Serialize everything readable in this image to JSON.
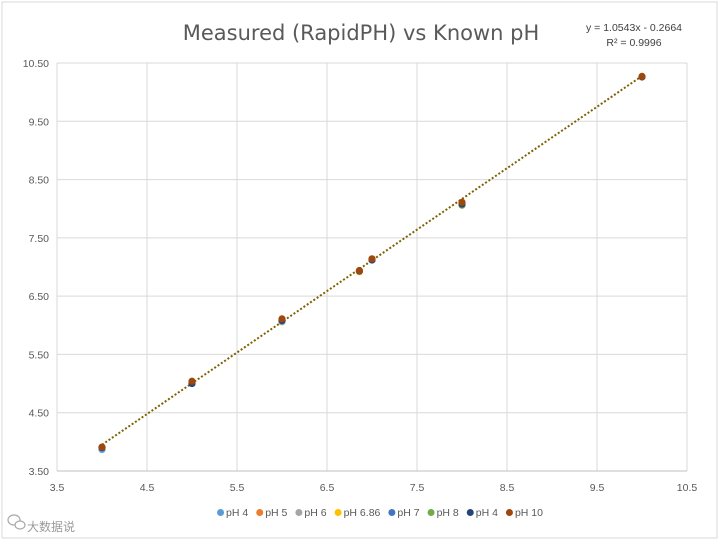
{
  "chart_data": {
    "type": "scatter",
    "title": "Measured (RapidPH) vs Known pH",
    "xlabel": "",
    "ylabel": "",
    "xlim": [
      3.5,
      10.5
    ],
    "ylim": [
      3.5,
      10.5
    ],
    "x_ticks": [
      "3.5",
      "4.5",
      "5.5",
      "6.5",
      "7.5",
      "8.5",
      "9.5",
      "10.5"
    ],
    "y_ticks": [
      "3.50",
      "4.50",
      "5.50",
      "6.50",
      "7.50",
      "8.50",
      "9.50",
      "10.50"
    ],
    "grid": true,
    "legend_position": "bottom",
    "trendline": {
      "type": "linear",
      "slope": 1.0543,
      "intercept": -0.2664,
      "x_range": [
        4,
        10
      ],
      "color": "#7f6000",
      "equation": "y = 1.0543x - 0.2664",
      "r_squared": "R² = 0.9996"
    },
    "series": [
      {
        "name": "pH 4",
        "color": "#5b9bd5",
        "points": [
          [
            4,
            3.87
          ]
        ]
      },
      {
        "name": "pH 5",
        "color": "#ed7d31",
        "points": [
          [
            5,
            5.03
          ]
        ]
      },
      {
        "name": "pH 6",
        "color": "#a5a5a5",
        "points": [
          [
            6,
            6.06
          ]
        ]
      },
      {
        "name": "pH 6.86",
        "color": "#ffc000",
        "points": [
          [
            6.86,
            6.92
          ]
        ]
      },
      {
        "name": "pH 7",
        "color": "#4472c4",
        "points": [
          [
            7,
            7.12
          ]
        ]
      },
      {
        "name": "pH 8",
        "color": "#70ad47",
        "points": [
          [
            8,
            8.06
          ]
        ]
      },
      {
        "name": "pH 4",
        "color": "#264478",
        "points": [
          [
            4,
            3.9
          ],
          [
            5,
            5.0
          ],
          [
            6,
            6.08
          ],
          [
            6.86,
            6.93
          ],
          [
            7,
            7.12
          ],
          [
            8,
            8.08
          ],
          [
            10,
            10.26
          ]
        ]
      },
      {
        "name": "pH 10",
        "color": "#9e480e",
        "points": [
          [
            4,
            3.91
          ],
          [
            5,
            5.04
          ],
          [
            6,
            6.11
          ],
          [
            6.86,
            6.94
          ],
          [
            7,
            7.14
          ],
          [
            8,
            8.11
          ],
          [
            10,
            10.27
          ]
        ]
      }
    ]
  },
  "watermark": {
    "text": "大数据说",
    "icon": "wechat-icon"
  }
}
